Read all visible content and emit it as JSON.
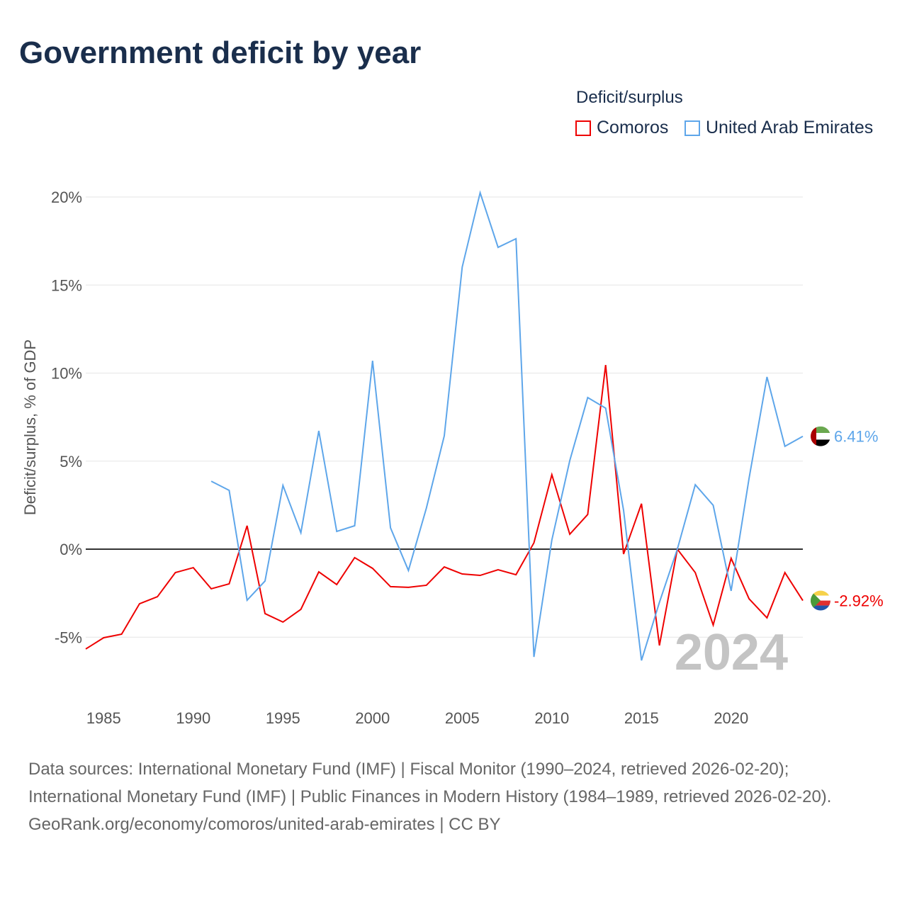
{
  "chart_data": {
    "type": "line",
    "title": "Government deficit by year",
    "ylabel": "Deficit/surplus, % of GDP",
    "xlabel": "",
    "xlim": [
      1984,
      2024
    ],
    "ylim": [
      -8,
      21
    ],
    "x_ticks": [
      1985,
      1990,
      1995,
      2000,
      2005,
      2010,
      2015,
      2020
    ],
    "x_tick_labels": [
      "1985",
      "1990",
      "1995",
      "2000",
      "2005",
      "2010",
      "2015",
      "2020"
    ],
    "y_ticks": [
      -5,
      0,
      5,
      10,
      15,
      20
    ],
    "y_tick_labels": [
      "-5%",
      "0%",
      "5%",
      "10%",
      "15%",
      "20%"
    ],
    "grid": true,
    "legend_title": "Deficit/surplus",
    "legend_position": "top-right",
    "year_watermark": "2024",
    "series": [
      {
        "name": "Comoros",
        "color": "#ee0000",
        "end_label": "-2.92%",
        "start_year": 1984,
        "values": [
          -5.67,
          -5.03,
          -4.83,
          -3.1,
          -2.7,
          -1.33,
          -1.05,
          -2.25,
          -1.97,
          1.33,
          -3.66,
          -4.14,
          -3.42,
          -1.29,
          -2.01,
          -0.48,
          -1.09,
          -2.13,
          -2.17,
          -2.05,
          -1.01,
          -1.41,
          -1.49,
          -1.17,
          -1.45,
          0.36,
          4.23,
          0.85,
          1.97,
          10.46,
          -0.28,
          2.58,
          -5.47,
          0.0,
          -1.33,
          -4.31,
          -0.52,
          -2.82,
          -3.9,
          -1.33,
          -2.92
        ]
      },
      {
        "name": "United Arab Emirates",
        "color": "#5ea6ea",
        "end_label": "6.41%",
        "start_year": 1991,
        "values": [
          3.86,
          3.34,
          -2.9,
          -1.81,
          3.62,
          0.93,
          6.72,
          1.01,
          1.33,
          10.7,
          1.21,
          -1.21,
          2.33,
          6.44,
          16.02,
          20.24,
          17.14,
          17.63,
          -6.12,
          0.52,
          5.03,
          8.61,
          8.01,
          2.21,
          -6.32,
          -3.02,
          0.0,
          3.66,
          2.49,
          -2.37,
          4.02,
          9.78,
          5.84,
          6.41
        ]
      }
    ]
  },
  "footer": {
    "sources": "Data sources: International Monetary Fund (IMF) | Fiscal Monitor (1990–2024, retrieved 2026-02-20); International Monetary Fund (IMF) | Public Finances in Modern History (1984–1989, retrieved 2026-02-20).",
    "credit": "GeoRank.org/economy/comoros/united-arab-emirates | CC BY"
  }
}
